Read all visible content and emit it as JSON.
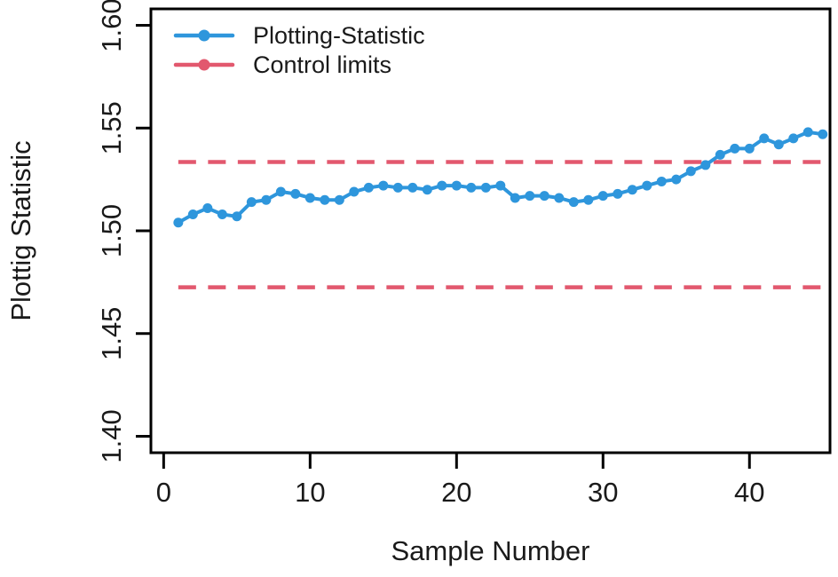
{
  "chart_data": {
    "type": "line",
    "title": "",
    "xlabel": "Sample Number",
    "ylabel": "Plottig Statistic",
    "x": [
      1,
      2,
      3,
      4,
      5,
      6,
      7,
      8,
      9,
      10,
      11,
      12,
      13,
      14,
      15,
      16,
      17,
      18,
      19,
      20,
      21,
      22,
      23,
      24,
      25,
      26,
      27,
      28,
      29,
      30,
      31,
      32,
      33,
      34,
      35,
      36,
      37,
      38,
      39,
      40,
      41,
      42,
      43,
      44,
      45
    ],
    "series": [
      {
        "name": "Plotting-Statistic",
        "type": "line-marker",
        "color": "#2E96DC",
        "values": [
          1.504,
          1.508,
          1.511,
          1.508,
          1.507,
          1.514,
          1.515,
          1.519,
          1.518,
          1.516,
          1.515,
          1.515,
          1.519,
          1.521,
          1.522,
          1.521,
          1.521,
          1.52,
          1.522,
          1.522,
          1.521,
          1.521,
          1.522,
          1.516,
          1.517,
          1.517,
          1.516,
          1.514,
          1.515,
          1.517,
          1.518,
          1.52,
          1.522,
          1.524,
          1.525,
          1.529,
          1.532,
          1.537,
          1.54,
          1.54,
          1.545,
          1.542,
          1.545,
          1.548,
          1.547
        ]
      },
      {
        "name": "Control limits",
        "type": "hline-dashed",
        "color": "#E2586E",
        "upper": 1.5335,
        "lower": 1.4725,
        "x_start": 1,
        "x_end": 45
      }
    ],
    "axes": {
      "xlim": [
        -0.87,
        45.5
      ],
      "ylim": [
        1.392,
        1.608
      ],
      "xticks": [
        0,
        10,
        20,
        30,
        40
      ],
      "xtick_labels": [
        "0",
        "10",
        "20",
        "30",
        "40"
      ],
      "yticks": [
        1.4,
        1.45,
        1.5,
        1.55,
        1.6
      ],
      "ytick_labels": [
        "1.40",
        "1.45",
        "1.50",
        "1.55",
        "1.60"
      ]
    },
    "grid": false,
    "legend": {
      "position": "top-left",
      "entries": [
        {
          "label": "Plotting-Statistic",
          "color": "#2E96DC",
          "dashed": false
        },
        {
          "label": "Control limits",
          "color": "#E2586E",
          "dashed": false
        }
      ]
    },
    "style": {
      "axis_color": "#000000",
      "text_color": "#1a1a1a",
      "line_width": 4,
      "dash_width": 4.5,
      "marker_radius": 5.5
    }
  }
}
